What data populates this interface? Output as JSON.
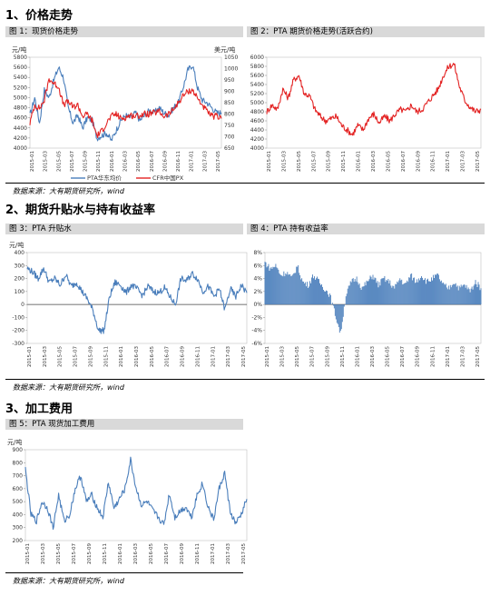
{
  "sections": {
    "s1": "1、价格走势",
    "s2": "2、期货升贴水与持有收益率",
    "s3": "3、加工费用"
  },
  "source": "数据来源：大有期货研究所，wind",
  "chart_data": [
    {
      "id": "fig1",
      "type": "line",
      "caption": "图 1：现货价格走势",
      "ylabel": "元/吨",
      "ylabel_right": "美元/吨",
      "ylim": [
        4000,
        5800
      ],
      "yticks": [
        "5800",
        "5600",
        "5400",
        "5200",
        "5000",
        "4800",
        "4600",
        "4400",
        "4200",
        "4000"
      ],
      "ylim_right": [
        650,
        1050
      ],
      "yticks_right": [
        "1050",
        "1000",
        "950",
        "900",
        "850",
        "800",
        "750",
        "700",
        "650"
      ],
      "xticks": [
        "2015-01",
        "2015-03",
        "2015-05",
        "2015-07",
        "2015-09",
        "2015-11",
        "2016-01",
        "2016-03",
        "2016-05",
        "2016-07",
        "2016-09",
        "2016-11",
        "2017-01",
        "2017-03",
        "2017-05"
      ],
      "series": [
        {
          "name": "PTA华东均价",
          "color": "#4a7ebb",
          "axis": "left",
          "values": [
            4650,
            5000,
            4500,
            5150,
            5000,
            5350,
            5600,
            5400,
            4800,
            4500,
            4650,
            4400,
            4600,
            4550,
            4200,
            4250,
            4300,
            4150,
            4350,
            4550,
            4650,
            4600,
            4700,
            4550,
            4650,
            4750,
            4700,
            4800,
            4700,
            4650,
            4800,
            4900,
            5200,
            5550,
            5650,
            5200,
            4950,
            4900,
            4800,
            4700,
            4700
          ]
        },
        {
          "name": "CFR中国PX",
          "color": "#e32323",
          "axis": "right",
          "values": [
            760,
            840,
            825,
            860,
            955,
            935,
            920,
            840,
            855,
            830,
            840,
            790,
            800,
            770,
            705,
            725,
            760,
            790,
            800,
            780,
            785,
            795,
            790,
            795,
            800,
            800,
            805,
            810,
            790,
            800,
            820,
            850,
            880,
            900,
            905,
            870,
            840,
            810,
            790,
            790,
            780
          ]
        }
      ]
    },
    {
      "id": "fig2",
      "type": "line",
      "caption": "图 2：PTA 期货价格走势(活跃合约)",
      "ylim": [
        4000,
        6000
      ],
      "yticks": [
        "6000",
        "5800",
        "5600",
        "5400",
        "5200",
        "5000",
        "4800",
        "4600",
        "4400",
        "4200",
        "4000"
      ],
      "xticks": [
        "2015-01",
        "2015-03",
        "2015-05",
        "2015-07",
        "2015-09",
        "2015-11",
        "2016-01",
        "2016-03",
        "2016-05",
        "2016-07",
        "2016-09",
        "2016-11",
        "2017-01",
        "2017-03",
        "2017-05"
      ],
      "series": [
        {
          "name": "PTA活跃合约",
          "color": "#e32323",
          "values": [
            4800,
            4950,
            4850,
            5300,
            5100,
            5500,
            5600,
            5200,
            5150,
            4850,
            4700,
            4600,
            4650,
            4700,
            4500,
            4400,
            4300,
            4500,
            4400,
            4650,
            4750,
            4550,
            4700,
            4600,
            4750,
            4850,
            4800,
            4950,
            4800,
            4850,
            5000,
            5150,
            5300,
            5600,
            5800,
            5850,
            5350,
            5050,
            4900,
            4800,
            4850
          ]
        }
      ]
    },
    {
      "id": "fig3",
      "type": "line",
      "caption": "图 3：PTA 升贴水",
      "ylabel": "元/吨",
      "ylim": [
        -300,
        400
      ],
      "yticks": [
        "400",
        "300",
        "200",
        "100",
        "0",
        "-100",
        "-200",
        "-300"
      ],
      "xticks": [
        "2015-01",
        "2015-03",
        "2015-05",
        "2015-07",
        "2015-09",
        "2015-11",
        "2016-01",
        "2016-03",
        "2016-05",
        "2016-07",
        "2016-09",
        "2016-11",
        "2017-01",
        "2017-03",
        "2017-05"
      ],
      "series": [
        {
          "name": "PTA升贴水",
          "color": "#4a7ebb",
          "values": [
            280,
            250,
            200,
            280,
            170,
            200,
            150,
            230,
            140,
            170,
            100,
            40,
            -50,
            -200,
            -200,
            60,
            170,
            150,
            90,
            150,
            120,
            70,
            140,
            100,
            90,
            130,
            60,
            0,
            200,
            180,
            240,
            200,
            100,
            140,
            60,
            120,
            -40,
            120,
            60,
            150,
            90
          ]
        }
      ]
    },
    {
      "id": "fig4",
      "type": "area",
      "caption": "图 4：PTA 持有收益率",
      "ylim": [
        -6,
        8
      ],
      "yticks": [
        "8%",
        "6%",
        "4%",
        "2%",
        "0%",
        "-2%",
        "-4%",
        "-6%"
      ],
      "xticks": [
        "2015-01",
        "2015-03",
        "2015-05",
        "2015-07",
        "2015-09",
        "2015-11",
        "2016-01",
        "2016-03",
        "2016-05",
        "2016-07",
        "2016-09",
        "2016-11",
        "2017-01",
        "2017-03",
        "2017-05"
      ],
      "series": [
        {
          "name": "PTA持有收益率",
          "color": "#4a7ebb",
          "values": [
            6.5,
            5.5,
            6.0,
            4.5,
            5.0,
            4.0,
            6.0,
            3.5,
            3.0,
            4.5,
            3.5,
            2.5,
            1.5,
            -1.5,
            -4.5,
            1.5,
            3.5,
            4.0,
            2.5,
            3.5,
            4.5,
            3.0,
            4.0,
            3.5,
            2.5,
            4.0,
            3.0,
            4.5,
            3.5,
            4.5,
            3.5,
            4.0,
            4.5,
            3.0,
            2.5,
            3.5,
            2.5,
            3.0,
            2.0,
            3.5,
            2.5
          ]
        }
      ]
    },
    {
      "id": "fig5",
      "type": "line",
      "caption": "图 5：PTA 现货加工费用",
      "ylabel": "元/吨",
      "ylim": [
        200,
        900
      ],
      "yticks": [
        "900",
        "800",
        "700",
        "600",
        "500",
        "400",
        "300",
        "200"
      ],
      "xticks": [
        "2015-01",
        "2015-03",
        "2015-05",
        "2015-07",
        "2015-09",
        "2015-11",
        "2016-01",
        "2016-03",
        "2016-05",
        "2016-07",
        "2016-09",
        "2016-11",
        "2017-01",
        "2017-03",
        "2017-05"
      ],
      "series": [
        {
          "name": "PTA现货加工费",
          "color": "#4a7ebb",
          "values": [
            750,
            400,
            350,
            500,
            450,
            300,
            550,
            350,
            400,
            600,
            700,
            500,
            550,
            450,
            380,
            650,
            450,
            520,
            600,
            820,
            600,
            470,
            500,
            430,
            380,
            320,
            560,
            380,
            430,
            460,
            380,
            550,
            640,
            460,
            360,
            600,
            720,
            420,
            330,
            400,
            520
          ]
        }
      ]
    }
  ]
}
